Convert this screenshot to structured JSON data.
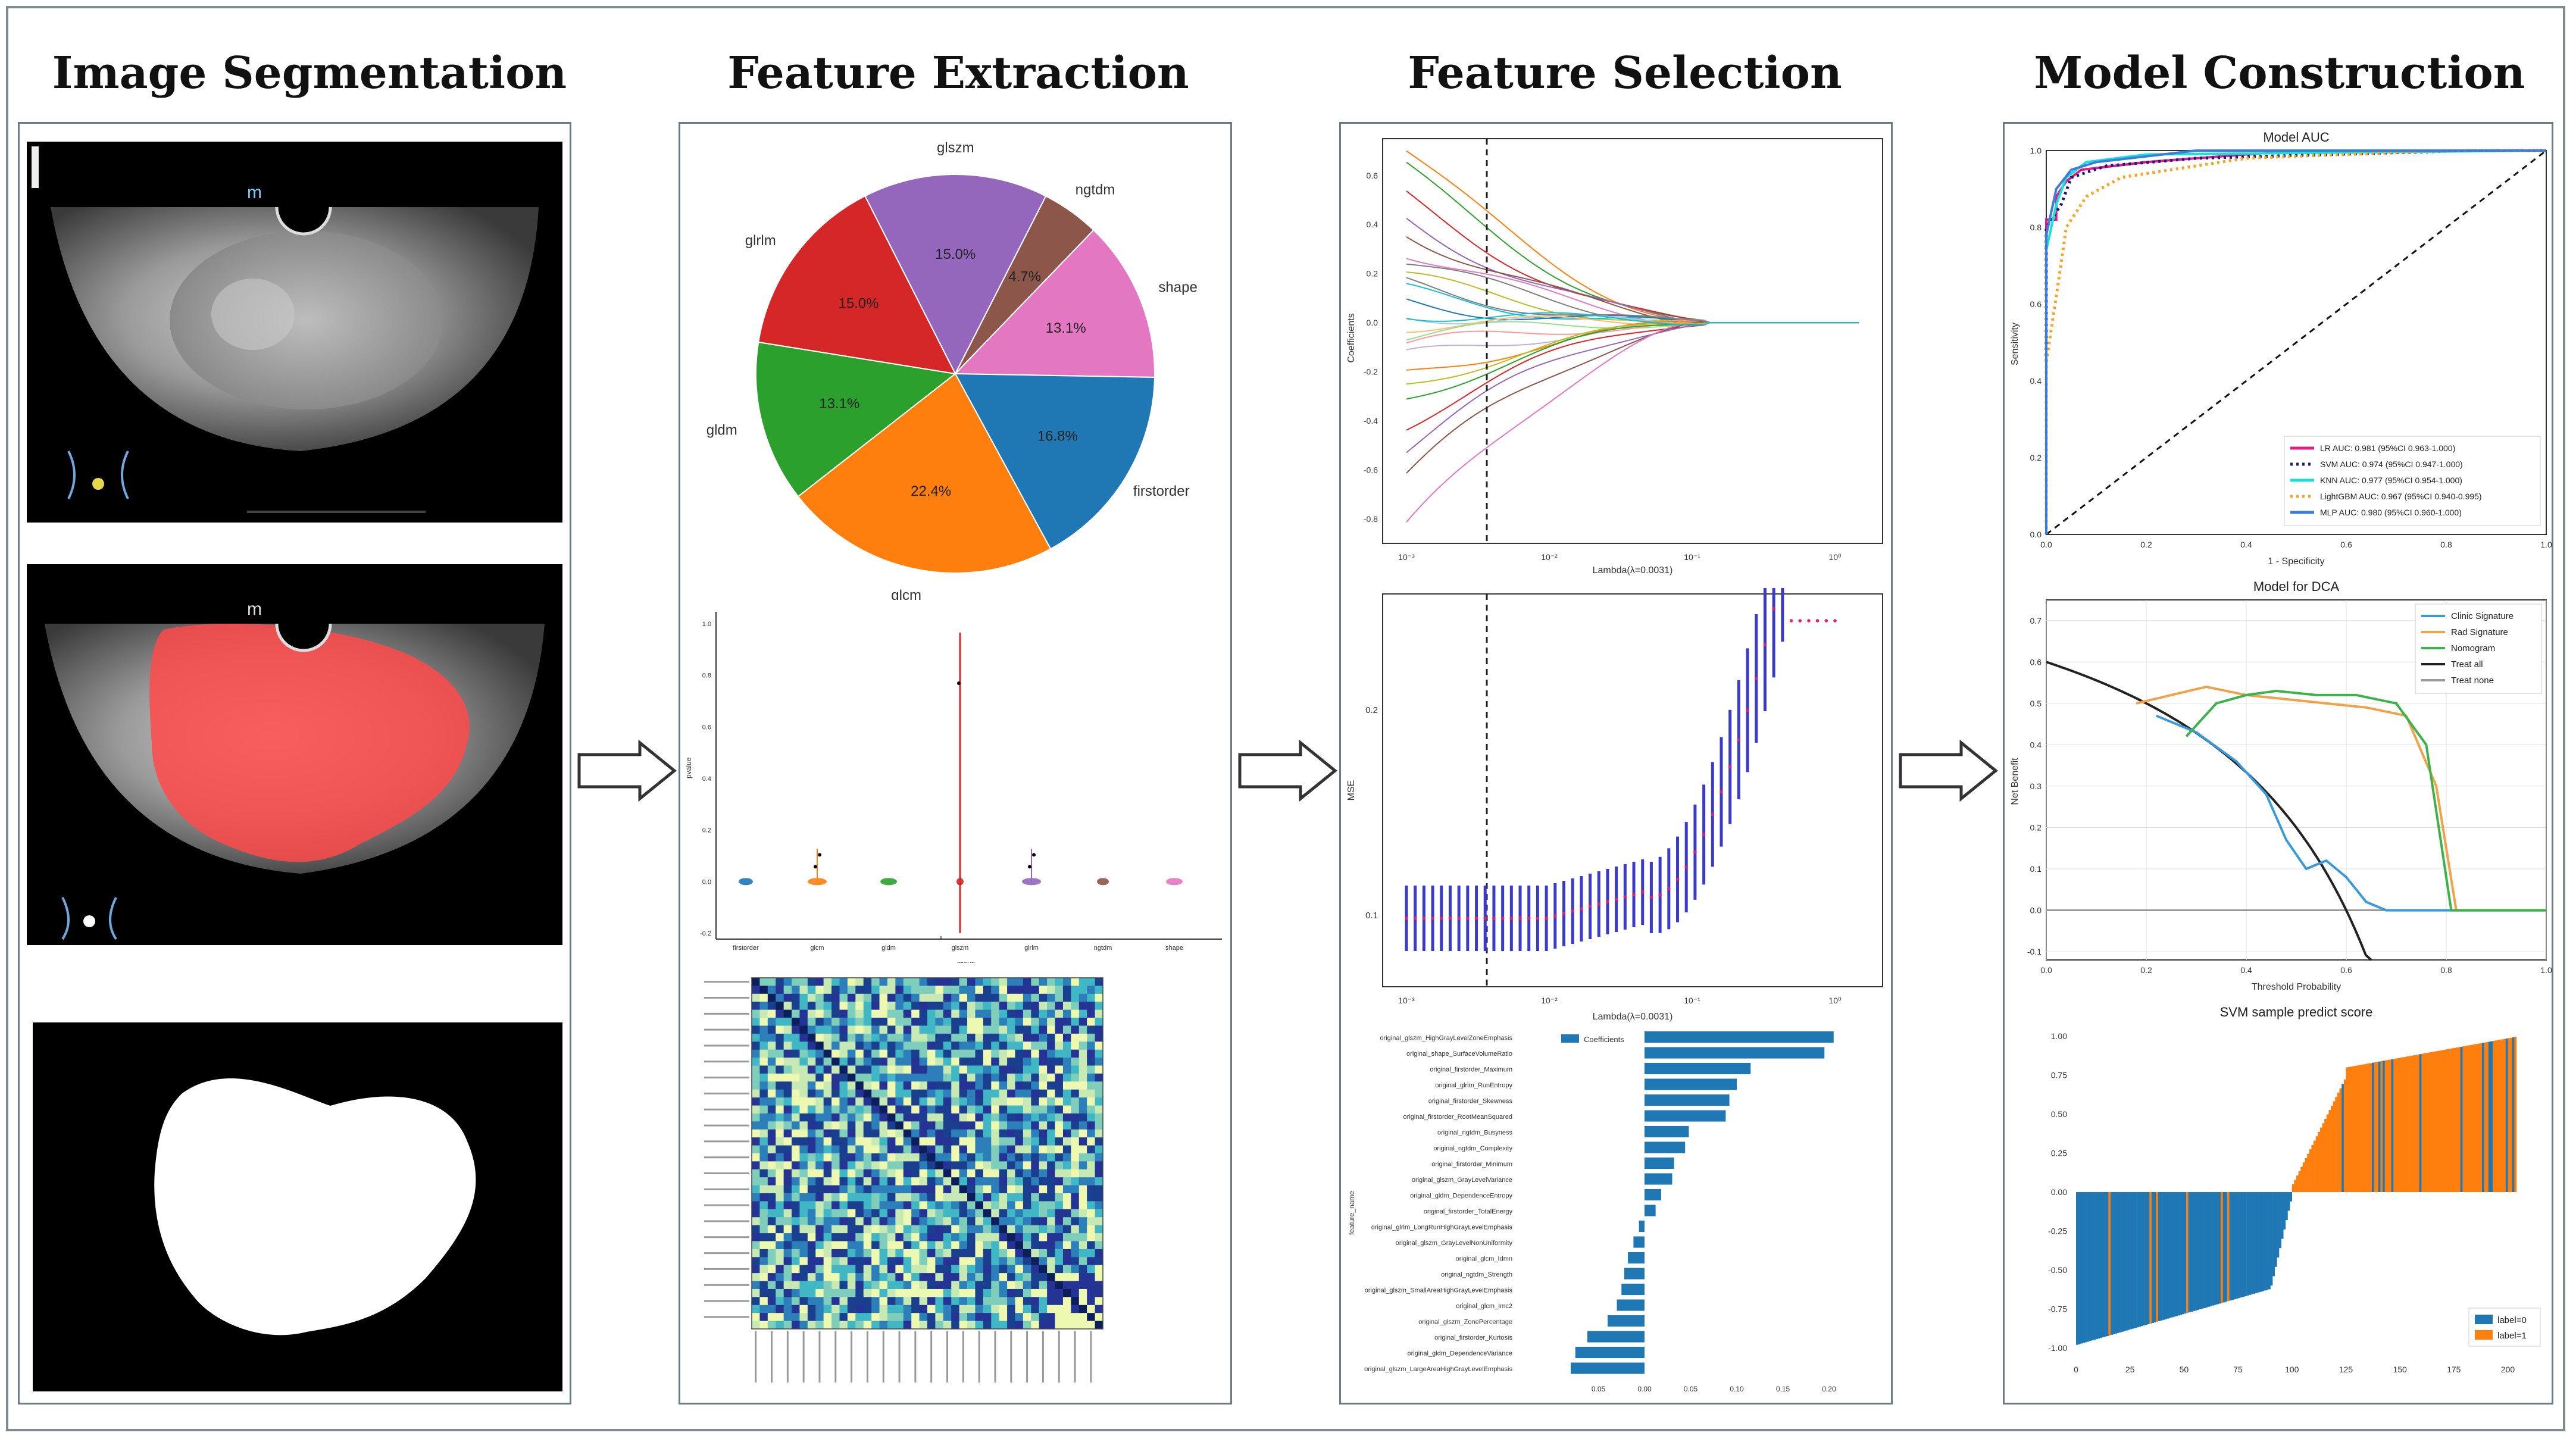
{
  "titles": {
    "segmentation": "Image Segmentation",
    "extraction": "Feature Extraction",
    "selection": "Feature Selection",
    "construction": "Model Construction"
  },
  "pie": {
    "labels": [
      "glszm",
      "ngtdm",
      "shape",
      "firstorder",
      "glcm",
      "gldm",
      "glrlm"
    ],
    "values": [
      15.0,
      4.7,
      13.1,
      16.8,
      22.4,
      13.1,
      15.0
    ],
    "colors": [
      "#9467bd",
      "#8c564b",
      "#e377c2",
      "#1f77b4",
      "#ff7f0e",
      "#2ca02c",
      "#d62728"
    ],
    "pct": [
      "15.0%",
      "4.7%",
      "13.1%",
      "16.8%",
      "22.4%",
      "13.1%",
      "15.0%"
    ]
  },
  "violin": {
    "ylabel": "pvalue",
    "xlabel": "group",
    "groups": [
      "firstorder",
      "glcm",
      "gldm",
      "glszm",
      "glrlm",
      "ngtdm",
      "shape"
    ],
    "yticks": [
      "1.0",
      "0.8",
      "0.6",
      "0.4",
      "0.2",
      "0.0",
      "-0.2"
    ]
  },
  "lasso": {
    "ylabel": "Coefficients",
    "xlabel": "Lambda(λ=0.0031)",
    "yticks": [
      "0.6",
      "0.4",
      "0.2",
      "0.0",
      "-0.2",
      "-0.4",
      "-0.6",
      "-0.8"
    ],
    "xticks": [
      "10⁻³",
      "10⁻²",
      "10⁻¹",
      "10⁰"
    ]
  },
  "mse": {
    "ylabel": "MSE",
    "xlabel": "Lambda(λ=0.0031)",
    "yticks": [
      "0.2",
      "0.1"
    ],
    "xticks": [
      "10⁻³",
      "10⁻²",
      "10⁻¹",
      "10⁰"
    ]
  },
  "coef": {
    "legend": "Coefficients",
    "ylabel": "feature_name",
    "features": [
      "original_glszm_HighGrayLevelZoneEmphasis",
      "original_shape_SurfaceVolumeRatio",
      "original_firstorder_Maximum",
      "original_glrlm_RunEntropy",
      "original_firstorder_Skewness",
      "original_firstorder_RootMeanSquared",
      "original_ngtdm_Busyness",
      "original_ngtdm_Complexity",
      "original_firstorder_Minimum",
      "original_glszm_GrayLevelVariance",
      "original_gldm_DependenceEntropy",
      "original_firstorder_TotalEnergy",
      "original_glrlm_LongRunHighGrayLevelEmphasis",
      "original_glszm_GrayLevelNonUniformity",
      "original_glcm_Idmn",
      "original_ngtdm_Strength",
      "original_glszm_SmallAreaHighGrayLevelEmphasis",
      "original_glcm_Imc2",
      "original_glszm_ZonePercentage",
      "original_firstorder_Kurtosis",
      "original_gldm_DependenceVariance",
      "original_glszm_LargeAreaHighGrayLevelEmphasis"
    ],
    "values": [
      0.205,
      0.195,
      0.115,
      0.1,
      0.092,
      0.088,
      0.048,
      0.044,
      0.032,
      0.03,
      0.018,
      0.012,
      -0.006,
      -0.012,
      -0.018,
      -0.022,
      -0.025,
      -0.03,
      -0.04,
      -0.062,
      -0.075,
      -0.08
    ],
    "xticks": [
      "0.05",
      "0.00",
      "0.05",
      "0.10",
      "0.15",
      "0.20"
    ]
  },
  "auc": {
    "title": "Model AUC",
    "xlabel": "1 - Specificity",
    "ylabel": "Sensitivity",
    "ticks": [
      "0.0",
      "0.2",
      "0.4",
      "0.6",
      "0.8",
      "1.0"
    ],
    "legend": [
      {
        "label": "LR AUC: 0.981 (95%CI 0.963-1.000)",
        "color": "#e41a8a",
        "style": "solid"
      },
      {
        "label": "SVM AUC: 0.974 (95%CI 0.947-1.000)",
        "color": "#1b1b7a",
        "style": "dotted"
      },
      {
        "label": "KNN AUC: 0.977 (95%CI 0.954-1.000)",
        "color": "#17e0d6",
        "style": "solid"
      },
      {
        "label": "LightGBM AUC: 0.967 (95%CI 0.940-0.995)",
        "color": "#f5a623",
        "style": "dotted"
      },
      {
        "label": "MLP AUC: 0.980 (95%CI 0.960-1.000)",
        "color": "#3b7dd8",
        "style": "solid"
      }
    ]
  },
  "dca": {
    "title": "Model for DCA",
    "xlabel": "Threshold Probability",
    "ylabel": "Net Benefit",
    "yticks": [
      "0.7",
      "0.6",
      "0.5",
      "0.4",
      "0.3",
      "0.2",
      "0.1",
      "0.0",
      "-0.1"
    ],
    "xticks": [
      "0.0",
      "0.2",
      "0.4",
      "0.6",
      "0.8",
      "1.0"
    ],
    "legend": [
      {
        "label": "Clinic Signature",
        "color": "#3a9ad9"
      },
      {
        "label": "Rad Signature",
        "color": "#f0a24a"
      },
      {
        "label": "Nomogram",
        "color": "#3cb34a"
      },
      {
        "label": "Treat all",
        "color": "#222222"
      },
      {
        "label": "Treat none",
        "color": "#999999"
      }
    ]
  },
  "svm": {
    "title": "SVM sample predict score",
    "yticks": [
      "1.00",
      "0.75",
      "0.50",
      "0.25",
      "0.00",
      "-0.25",
      "-0.50",
      "-0.75",
      "-1.00"
    ],
    "xticks": [
      "0",
      "25",
      "50",
      "75",
      "100",
      "125",
      "150",
      "175",
      "200"
    ],
    "legend": [
      {
        "label": "label=0",
        "color": "#1f77b4"
      },
      {
        "label": "label=1",
        "color": "#ff7f0e"
      }
    ]
  }
}
